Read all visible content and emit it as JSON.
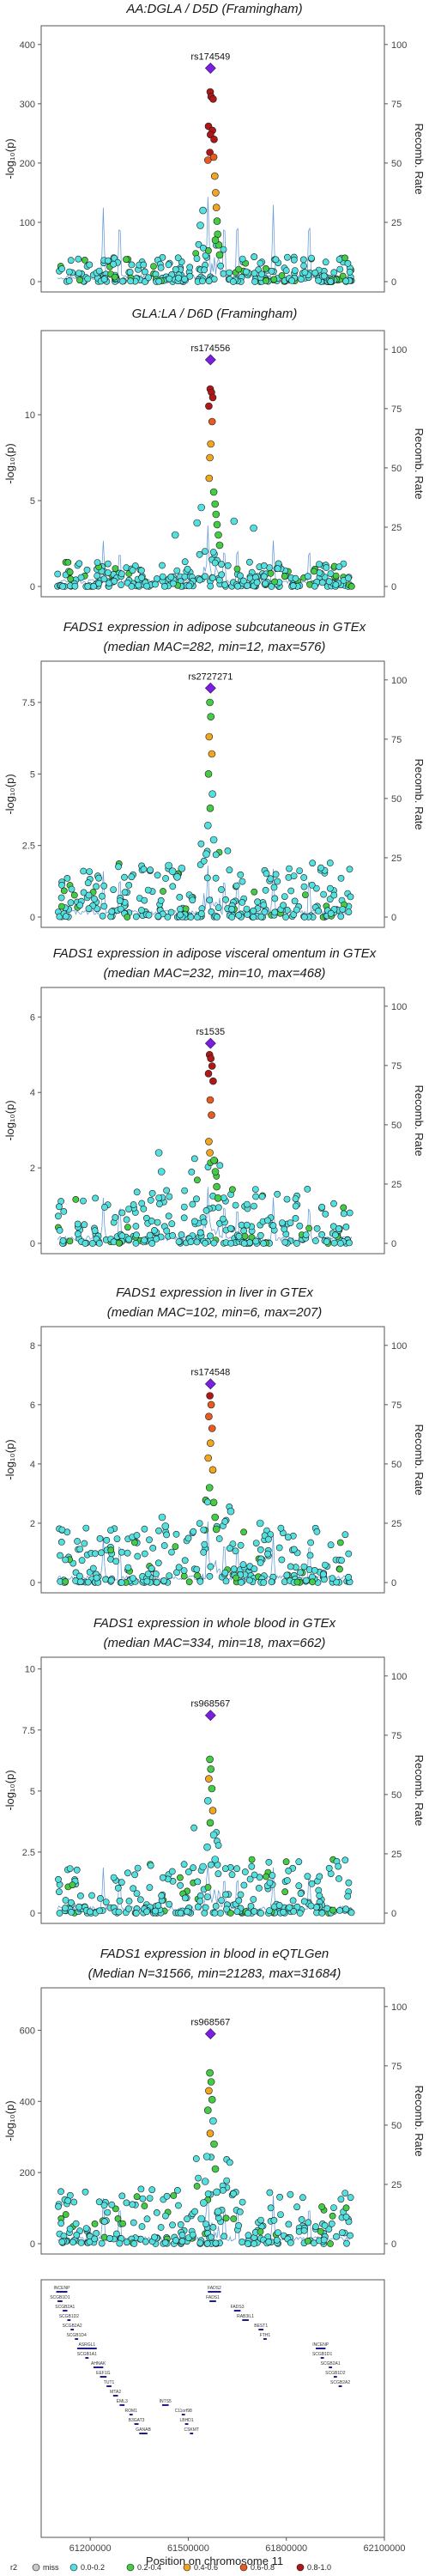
{
  "chart_data": [
    {
      "type": "scatter",
      "title": "AA:DGLA / D5D (Framingham)",
      "subtitle": "",
      "lead_snp": "rs174549",
      "ylim": [
        0,
        420
      ],
      "yticks": [
        0,
        100,
        200,
        300,
        400
      ],
      "lead_value": 360,
      "profile": [
        {
          "x": 61567000,
          "y": 320,
          "r2": "0.8-1.0"
        },
        {
          "x": 61570000,
          "y": 312,
          "r2": "0.8-1.0"
        },
        {
          "x": 61576000,
          "y": 308,
          "r2": "0.8-1.0"
        },
        {
          "x": 61562000,
          "y": 262,
          "r2": "0.8-1.0"
        },
        {
          "x": 61574000,
          "y": 255,
          "r2": "0.8-1.0"
        },
        {
          "x": 61568000,
          "y": 248,
          "r2": "0.8-1.0"
        },
        {
          "x": 61579000,
          "y": 240,
          "r2": "0.8-1.0"
        },
        {
          "x": 61566000,
          "y": 218,
          "r2": "0.8-1.0"
        },
        {
          "x": 61560000,
          "y": 205,
          "r2": "0.6-0.8"
        },
        {
          "x": 61578000,
          "y": 210,
          "r2": "0.6-0.8"
        },
        {
          "x": 61581000,
          "y": 178,
          "r2": "0.4-0.6"
        },
        {
          "x": 61584000,
          "y": 150,
          "r2": "0.4-0.6"
        },
        {
          "x": 61586000,
          "y": 125,
          "r2": "0.4-0.6"
        },
        {
          "x": 61588000,
          "y": 102,
          "r2": "0.2-0.4"
        },
        {
          "x": 61590000,
          "y": 80,
          "r2": "0.2-0.4"
        },
        {
          "x": 61593000,
          "y": 62,
          "r2": "0.2-0.4"
        },
        {
          "x": 61583000,
          "y": 70,
          "r2": "0.2-0.4"
        },
        {
          "x": 61596000,
          "y": 45,
          "r2": "0.2-0.4"
        },
        {
          "x": 61545000,
          "y": 120,
          "r2": "0.0-0.2"
        },
        {
          "x": 61537000,
          "y": 95,
          "r2": "0.0-0.2"
        }
      ]
    },
    {
      "type": "scatter",
      "title": "GLA:LA / D6D (Framingham)",
      "subtitle": "",
      "lead_snp": "rs174556",
      "ylim": [
        0,
        14.5
      ],
      "yticks": [
        0,
        5,
        10
      ],
      "lead_value": 13.2,
      "profile": [
        {
          "x": 61567000,
          "y": 11.5,
          "r2": "0.8-1.0"
        },
        {
          "x": 61571000,
          "y": 11.3,
          "r2": "0.8-1.0"
        },
        {
          "x": 61575000,
          "y": 11.0,
          "r2": "0.8-1.0"
        },
        {
          "x": 61563000,
          "y": 10.5,
          "r2": "0.8-1.0"
        },
        {
          "x": 61573000,
          "y": 9.6,
          "r2": "0.6-0.8"
        },
        {
          "x": 61569000,
          "y": 8.3,
          "r2": "0.4-0.6"
        },
        {
          "x": 61566000,
          "y": 7.5,
          "r2": "0.4-0.6"
        },
        {
          "x": 61564000,
          "y": 6.3,
          "r2": "0.4-0.6"
        },
        {
          "x": 61578000,
          "y": 5.5,
          "r2": "0.2-0.4"
        },
        {
          "x": 61582000,
          "y": 4.8,
          "r2": "0.2-0.4"
        },
        {
          "x": 61585000,
          "y": 4.2,
          "r2": "0.2-0.4"
        },
        {
          "x": 61588000,
          "y": 3.6,
          "r2": "0.2-0.4"
        },
        {
          "x": 61592000,
          "y": 3.0,
          "r2": "0.2-0.4"
        },
        {
          "x": 61596000,
          "y": 2.4,
          "r2": "0.2-0.4"
        },
        {
          "x": 61540000,
          "y": 4.6,
          "r2": "0.0-0.2"
        },
        {
          "x": 61527000,
          "y": 3.7,
          "r2": "0.0-0.2"
        },
        {
          "x": 61640000,
          "y": 3.8,
          "r2": "0.0-0.2"
        },
        {
          "x": 61700000,
          "y": 3.4,
          "r2": "0.0-0.2"
        },
        {
          "x": 61460000,
          "y": 3.0,
          "r2": "0.0-0.2"
        }
      ]
    },
    {
      "type": "scatter",
      "title": "FADS1 expression in adipose subcutaneous in GTEx",
      "subtitle": "(median MAC=282, min=12, max=576)",
      "lead_snp": "rs2727271",
      "ylim": [
        0,
        8.7
      ],
      "yticks": [
        0,
        2.5,
        5.0,
        7.5
      ],
      "lead_value": 8.0,
      "profile": [
        {
          "x": 61566000,
          "y": 7.5,
          "r2": "0.2-0.4"
        },
        {
          "x": 61569000,
          "y": 7.0,
          "r2": "0.2-0.4"
        },
        {
          "x": 61564000,
          "y": 6.3,
          "r2": "0.4-0.6"
        },
        {
          "x": 61572000,
          "y": 5.7,
          "r2": "0.4-0.6"
        },
        {
          "x": 61562000,
          "y": 5.0,
          "r2": "0.2-0.4"
        },
        {
          "x": 61574000,
          "y": 4.3,
          "r2": "0.0-0.2"
        },
        {
          "x": 61567000,
          "y": 3.8,
          "r2": "0.2-0.4"
        },
        {
          "x": 61560000,
          "y": 3.2,
          "r2": "0.0-0.2"
        },
        {
          "x": 61578000,
          "y": 2.7,
          "r2": "0.0-0.2"
        },
        {
          "x": 61555000,
          "y": 2.2,
          "r2": "0.0-0.2"
        },
        {
          "x": 61440000,
          "y": 1.8,
          "r2": "0.0-0.2"
        },
        {
          "x": 61452000,
          "y": 1.6,
          "r2": "0.0-0.2"
        },
        {
          "x": 61466000,
          "y": 1.4,
          "r2": "0.0-0.2"
        },
        {
          "x": 61480000,
          "y": 1.7,
          "r2": "0.0-0.2"
        }
      ]
    },
    {
      "type": "scatter",
      "title": "FADS1 expression in adipose visceral omentum in GTEx",
      "subtitle": "(median MAC=232, min=10, max=468)",
      "lead_snp": "rs1535",
      "ylim": [
        0,
        6.6
      ],
      "yticks": [
        0,
        2,
        4,
        6
      ],
      "lead_value": 5.3,
      "profile": [
        {
          "x": 61565000,
          "y": 5.0,
          "r2": "0.8-1.0"
        },
        {
          "x": 61569000,
          "y": 4.9,
          "r2": "0.8-1.0"
        },
        {
          "x": 61573000,
          "y": 4.7,
          "r2": "0.8-1.0"
        },
        {
          "x": 61562000,
          "y": 4.5,
          "r2": "0.8-1.0"
        },
        {
          "x": 61576000,
          "y": 4.3,
          "r2": "0.8-1.0"
        },
        {
          "x": 61567000,
          "y": 3.8,
          "r2": "0.6-0.8"
        },
        {
          "x": 61571000,
          "y": 3.4,
          "r2": "0.6-0.8"
        },
        {
          "x": 61563000,
          "y": 2.7,
          "r2": "0.4-0.6"
        },
        {
          "x": 61566000,
          "y": 2.4,
          "r2": "0.4-0.6"
        },
        {
          "x": 61579000,
          "y": 2.2,
          "r2": "0.2-0.4"
        },
        {
          "x": 61583000,
          "y": 1.9,
          "r2": "0.2-0.4"
        },
        {
          "x": 61587000,
          "y": 1.5,
          "r2": "0.2-0.4"
        },
        {
          "x": 61591000,
          "y": 1.2,
          "r2": "0.2-0.4"
        },
        {
          "x": 61410000,
          "y": 2.4,
          "r2": "0.0-0.2"
        },
        {
          "x": 61418000,
          "y": 1.9,
          "r2": "0.0-0.2"
        }
      ]
    },
    {
      "type": "scatter",
      "title": "FADS1 expression in liver in GTEx",
      "subtitle": "(median MAC=102, min=6, max=207)",
      "lead_snp": "rs174548",
      "ylim": [
        0,
        8.4
      ],
      "yticks": [
        0,
        2,
        4,
        6,
        8
      ],
      "lead_value": 6.7,
      "profile": [
        {
          "x": 61566000,
          "y": 6.3,
          "r2": "0.8-1.0"
        },
        {
          "x": 61570000,
          "y": 6.0,
          "r2": "0.6-0.8"
        },
        {
          "x": 61563000,
          "y": 5.6,
          "r2": "0.6-0.8"
        },
        {
          "x": 61573000,
          "y": 5.2,
          "r2": "0.6-0.8"
        },
        {
          "x": 61568000,
          "y": 4.7,
          "r2": "0.4-0.6"
        },
        {
          "x": 61561000,
          "y": 4.2,
          "r2": "0.4-0.6"
        },
        {
          "x": 61575000,
          "y": 3.8,
          "r2": "0.4-0.6"
        },
        {
          "x": 61565000,
          "y": 3.2,
          "r2": "0.2-0.4"
        },
        {
          "x": 61578000,
          "y": 2.7,
          "r2": "0.2-0.4"
        },
        {
          "x": 61582000,
          "y": 2.2,
          "r2": "0.2-0.4"
        },
        {
          "x": 61586000,
          "y": 1.8,
          "r2": "0.2-0.4"
        },
        {
          "x": 61420000,
          "y": 2.2,
          "r2": "0.0-0.2"
        },
        {
          "x": 61430000,
          "y": 1.9,
          "r2": "0.0-0.2"
        },
        {
          "x": 61630000,
          "y": 2.4,
          "r2": "0.0-0.2"
        },
        {
          "x": 61720000,
          "y": 2.0,
          "r2": "0.0-0.2"
        }
      ]
    },
    {
      "type": "scatter",
      "title": "FADS1 expression in whole blood in GTEx",
      "subtitle": "(median MAC=334, min=18, max=662)",
      "lead_snp": "rs968567",
      "ylim": [
        0,
        10.2
      ],
      "yticks": [
        0,
        2.5,
        5.0,
        7.5,
        10.0
      ],
      "lead_value": 8.1,
      "profile": [
        {
          "x": 61566000,
          "y": 6.3,
          "r2": "0.2-0.4"
        },
        {
          "x": 61569000,
          "y": 5.9,
          "r2": "0.2-0.4"
        },
        {
          "x": 61563000,
          "y": 5.5,
          "r2": "0.4-0.6"
        },
        {
          "x": 61572000,
          "y": 5.1,
          "r2": "0.2-0.4"
        },
        {
          "x": 61560000,
          "y": 4.6,
          "r2": "0.0-0.2"
        },
        {
          "x": 61575000,
          "y": 4.2,
          "r2": "0.4-0.6"
        },
        {
          "x": 61567000,
          "y": 3.7,
          "r2": "0.2-0.4"
        },
        {
          "x": 61578000,
          "y": 3.2,
          "r2": "0.0-0.2"
        },
        {
          "x": 61558000,
          "y": 2.7,
          "r2": "0.0-0.2"
        },
        {
          "x": 61582000,
          "y": 2.2,
          "r2": "0.0-0.2"
        },
        {
          "x": 61545000,
          "y": 1.9,
          "r2": "0.0-0.2"
        }
      ]
    },
    {
      "type": "scatter",
      "title": "FADS1 expression in blood in eQTLGen",
      "subtitle": "(Median N=31566, min=21283, max=31684)",
      "lead_snp": "rs968567",
      "ylim": [
        0,
        700
      ],
      "yticks": [
        0,
        200,
        400,
        600
      ],
      "lead_value": 590,
      "profile": [
        {
          "x": 61566000,
          "y": 480,
          "r2": "0.2-0.4"
        },
        {
          "x": 61570000,
          "y": 455,
          "r2": "0.2-0.4"
        },
        {
          "x": 61563000,
          "y": 430,
          "r2": "0.4-0.6"
        },
        {
          "x": 61573000,
          "y": 405,
          "r2": "0.2-0.4"
        },
        {
          "x": 61560000,
          "y": 375,
          "r2": "0.2-0.4"
        },
        {
          "x": 61576000,
          "y": 345,
          "r2": "0.0-0.2"
        },
        {
          "x": 61567000,
          "y": 310,
          "r2": "0.4-0.6"
        },
        {
          "x": 61579000,
          "y": 280,
          "r2": "0.2-0.4"
        },
        {
          "x": 61557000,
          "y": 245,
          "r2": "0.0-0.2"
        },
        {
          "x": 61583000,
          "y": 210,
          "r2": "0.2-0.4"
        },
        {
          "x": 61552000,
          "y": 175,
          "r2": "0.0-0.2"
        },
        {
          "x": 61587000,
          "y": 145,
          "r2": "0.0-0.2"
        },
        {
          "x": 61547000,
          "y": 115,
          "r2": "0.0-0.2"
        },
        {
          "x": 61591000,
          "y": 90,
          "r2": "0.0-0.2"
        },
        {
          "x": 61540000,
          "y": 70,
          "r2": "0.0-0.2"
        }
      ]
    }
  ],
  "shared": {
    "xlim": [
      61050000,
      62100000
    ],
    "xticks": [
      61200000,
      61500000,
      61800000,
      62100000
    ],
    "xlabel": "Position on chromosome 11",
    "ylabel_left": "-log₁₀(p)",
    "ylabel_right": "Recomb. Rate",
    "recomb_ticks": [
      0,
      25,
      50,
      75,
      100
    ],
    "recomb_ylim": [
      0,
      105
    ]
  },
  "genes": [
    {
      "name": "INCENP",
      "start": 61096000,
      "end": 61130000,
      "row": 0
    },
    {
      "name": "SCGB1D1",
      "start": 61100000,
      "end": 61115000,
      "row": 1
    },
    {
      "name": "SCGB2A1",
      "start": 61116000,
      "end": 61130000,
      "row": 2
    },
    {
      "name": "SCGB1D2",
      "start": 61130000,
      "end": 61140000,
      "row": 3
    },
    {
      "name": "SCGB2A2",
      "start": 61140000,
      "end": 61150000,
      "row": 4
    },
    {
      "name": "SCGB1D4",
      "start": 61153000,
      "end": 61163000,
      "row": 5
    },
    {
      "name": "ASRGL1",
      "start": 61160000,
      "end": 61220000,
      "row": 6
    },
    {
      "name": "SCGB1A1",
      "start": 61185000,
      "end": 61195000,
      "row": 7
    },
    {
      "name": "AHNAK",
      "start": 61210000,
      "end": 61240000,
      "row": 8
    },
    {
      "name": "EEF1G",
      "start": 61230000,
      "end": 61250000,
      "row": 9
    },
    {
      "name": "TUT1",
      "start": 61250000,
      "end": 61265000,
      "row": 10
    },
    {
      "name": "MTA2",
      "start": 61270000,
      "end": 61285000,
      "row": 11
    },
    {
      "name": "EML3",
      "start": 61290000,
      "end": 61305000,
      "row": 12
    },
    {
      "name": "ROM1",
      "start": 61320000,
      "end": 61330000,
      "row": 13
    },
    {
      "name": "B3GAT3",
      "start": 61335000,
      "end": 61348000,
      "row": 14
    },
    {
      "name": "GANAB",
      "start": 61350000,
      "end": 61375000,
      "row": 15
    },
    {
      "name": "INTS5",
      "start": 61420000,
      "end": 61440000,
      "row": 12
    },
    {
      "name": "C11orf98",
      "start": 61480000,
      "end": 61490000,
      "row": 13
    },
    {
      "name": "LBHD1",
      "start": 61490000,
      "end": 61500000,
      "row": 14
    },
    {
      "name": "CSKMT",
      "start": 61505000,
      "end": 61515000,
      "row": 15
    },
    {
      "name": "FADS2",
      "start": 61560000,
      "end": 61600000,
      "row": 0
    },
    {
      "name": "FADS1",
      "start": 61565000,
      "end": 61585000,
      "row": 1
    },
    {
      "name": "FADS3",
      "start": 61640000,
      "end": 61660000,
      "row": 2
    },
    {
      "name": "RAB3IL1",
      "start": 61665000,
      "end": 61685000,
      "row": 3
    },
    {
      "name": "BEST1",
      "start": 61715000,
      "end": 61730000,
      "row": 4
    },
    {
      "name": "FTH1",
      "start": 61730000,
      "end": 61740000,
      "row": 5
    },
    {
      "name": "INCENP",
      "start": 61890000,
      "end": 61920000,
      "row": 6
    },
    {
      "name": "SCGB1D1",
      "start": 61905000,
      "end": 61915000,
      "row": 7
    },
    {
      "name": "SCGB2A1",
      "start": 61930000,
      "end": 61940000,
      "row": 8
    },
    {
      "name": "SCGB1D2",
      "start": 61945000,
      "end": 61955000,
      "row": 9
    },
    {
      "name": "SCGB2A2",
      "start": 61960000,
      "end": 61970000,
      "row": 10
    }
  ],
  "legend": {
    "title": "r2",
    "items": [
      {
        "label": "miss",
        "color": "#c9c9c9"
      },
      {
        "label": "0.0-0.2",
        "color": "#55e0e0"
      },
      {
        "label": "0.2-0.4",
        "color": "#44cc44"
      },
      {
        "label": "0.4-0.6",
        "color": "#f2a520"
      },
      {
        "label": "0.6-0.8",
        "color": "#e85a20"
      },
      {
        "label": "0.8-1.0",
        "color": "#b01818"
      }
    ]
  },
  "colors": {
    "lead": "#7a1fe0",
    "recomb": "#6a9fdc",
    "gene": "#1f1f8c",
    "frame": "#555555"
  }
}
